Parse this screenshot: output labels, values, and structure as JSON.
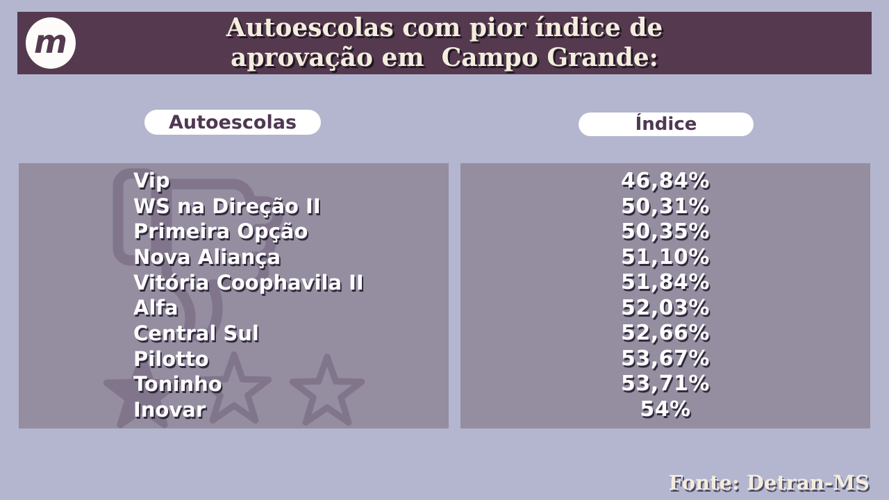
{
  "colors": {
    "bg": "#b3b6ce",
    "band": "#553a4f",
    "panel": "#958da0",
    "cream": "#f4edde",
    "pilltext": "#4f3852"
  },
  "header": {
    "logo_letter": "m",
    "title_line1": "Autoescolas com pior índice de",
    "title_line2": "aprovação em  Campo Grande:"
  },
  "chart_data": {
    "type": "table",
    "title": "Autoescolas com pior índice de aprovação em Campo Grande",
    "columns": [
      "Autoescolas",
      "Índice"
    ],
    "rows": [
      [
        "Vip",
        "46,84%"
      ],
      [
        "WS na Direção II",
        "50,31%"
      ],
      [
        "Primeira Opção",
        "50,35%"
      ],
      [
        "Nova Aliança",
        "51,10%"
      ],
      [
        "Vitória Coophavila II",
        "51,84%"
      ],
      [
        "Alfa",
        "52,03%"
      ],
      [
        "Central Sul",
        "52,66%"
      ],
      [
        "Pilotto",
        "53,67%"
      ],
      [
        "Toninho",
        "53,71%"
      ],
      [
        "Inovar",
        "54%"
      ]
    ]
  },
  "footer": {
    "source": "Fonte: Detran-MS"
  }
}
